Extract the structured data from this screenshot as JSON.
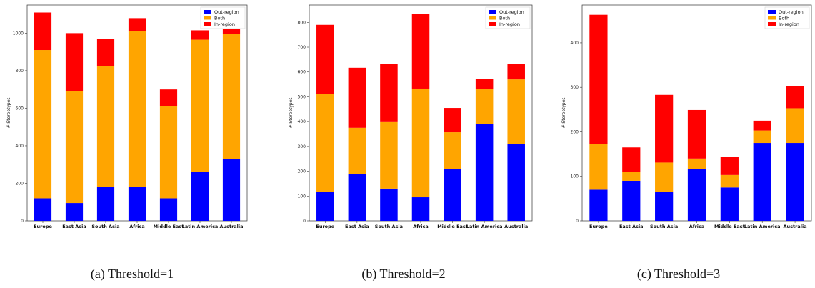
{
  "colors": {
    "out": "#0000ff",
    "both": "#ffa500",
    "in": "#ff0000"
  },
  "legend": [
    "Out-region",
    "Both",
    "In-region"
  ],
  "ylabel": "# Stereotypes",
  "captions": [
    "(a) Threshold=1",
    "(b) Threshold=2",
    "(c) Threshold=3"
  ],
  "chart_data": [
    {
      "type": "bar",
      "stacked": true,
      "categories": [
        "Europe",
        "East Asia",
        "South Asia",
        "Africa",
        "Middle East",
        "Latin America",
        "Australia"
      ],
      "ylabel": "# Stereotypes",
      "ylim": [
        0,
        1150
      ],
      "yticks": [
        0,
        200,
        400,
        600,
        800,
        1000
      ],
      "legend_position": "top-right",
      "series": [
        {
          "name": "Out-region",
          "values": [
            120,
            95,
            180,
            180,
            120,
            260,
            330
          ]
        },
        {
          "name": "Both",
          "values": [
            790,
            595,
            645,
            830,
            490,
            705,
            665
          ]
        },
        {
          "name": "In-region",
          "values": [
            200,
            310,
            145,
            70,
            90,
            50,
            40
          ]
        }
      ]
    },
    {
      "type": "bar",
      "stacked": true,
      "categories": [
        "Europe",
        "East Asia",
        "South Asia",
        "Africa",
        "Middle East",
        "Latin America",
        "Australia"
      ],
      "ylabel": "# Stereotypes",
      "ylim": [
        0,
        870
      ],
      "yticks": [
        0,
        100,
        200,
        300,
        400,
        500,
        600,
        700,
        800
      ],
      "legend_position": "top-right",
      "series": [
        {
          "name": "Out-region",
          "values": [
            118,
            190,
            130,
            95,
            210,
            390,
            310
          ]
        },
        {
          "name": "Both",
          "values": [
            392,
            185,
            268,
            438,
            147,
            140,
            260
          ]
        },
        {
          "name": "In-region",
          "values": [
            280,
            242,
            235,
            302,
            98,
            42,
            62
          ]
        }
      ]
    },
    {
      "type": "bar",
      "stacked": true,
      "categories": [
        "Europe",
        "East Asia",
        "South Asia",
        "Africa",
        "Middle East",
        "Latin America",
        "Australia"
      ],
      "ylabel": "# Stereotypes",
      "ylim": [
        0,
        485
      ],
      "yticks": [
        0,
        100,
        200,
        300,
        400
      ],
      "legend_position": "top-right",
      "series": [
        {
          "name": "Out-region",
          "values": [
            70,
            90,
            65,
            117,
            75,
            175,
            175
          ]
        },
        {
          "name": "Both",
          "values": [
            103,
            20,
            66,
            23,
            28,
            28,
            78
          ]
        },
        {
          "name": "In-region",
          "values": [
            290,
            55,
            152,
            109,
            40,
            22,
            50
          ]
        }
      ]
    }
  ]
}
